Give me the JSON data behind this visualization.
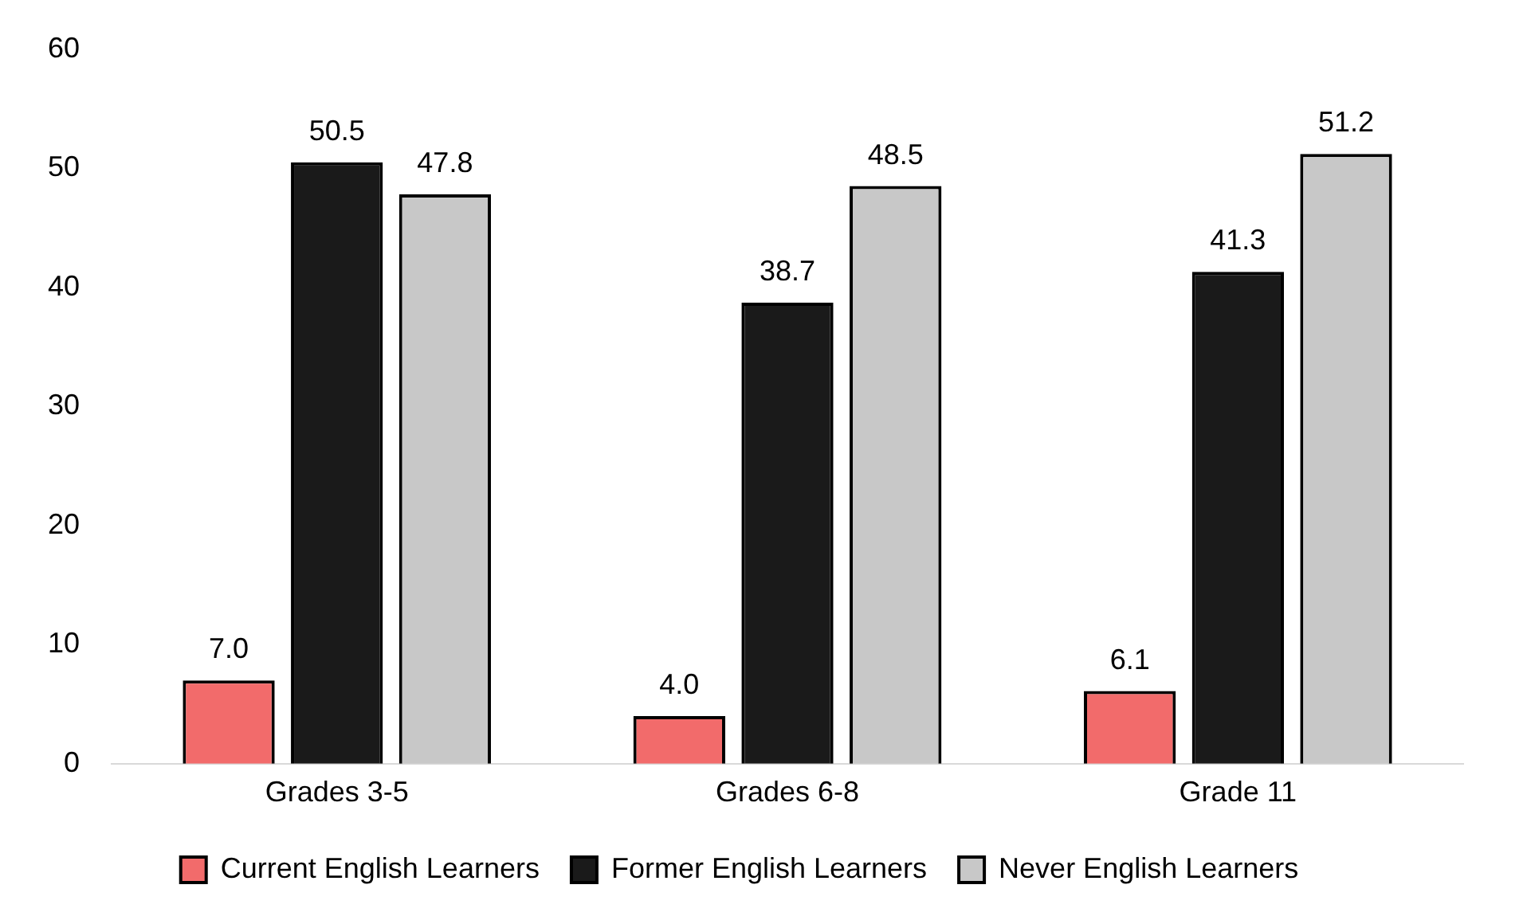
{
  "chart_data": {
    "type": "bar",
    "categories": [
      "Grades 3-5",
      "Grades 6-8",
      "Grade 11"
    ],
    "series": [
      {
        "name": "Current English Learners",
        "color": "#f26b6b",
        "values": [
          7.0,
          4.0,
          6.1
        ],
        "value_labels": [
          "7.0",
          "4.0",
          "6.1"
        ]
      },
      {
        "name": "Former English Learners",
        "color": "#1a1a1a",
        "values": [
          50.5,
          38.7,
          41.3
        ],
        "value_labels": [
          "50.5",
          "38.7",
          "41.3"
        ]
      },
      {
        "name": "Never English Learners",
        "color": "#c8c8c8",
        "values": [
          47.8,
          48.5,
          51.2
        ],
        "value_labels": [
          "47.8",
          "48.5",
          "51.2"
        ]
      }
    ],
    "ylim": [
      0,
      60
    ],
    "yticks": [
      0,
      10,
      20,
      30,
      40,
      50,
      60
    ],
    "grid": false,
    "legend": "bottom"
  }
}
